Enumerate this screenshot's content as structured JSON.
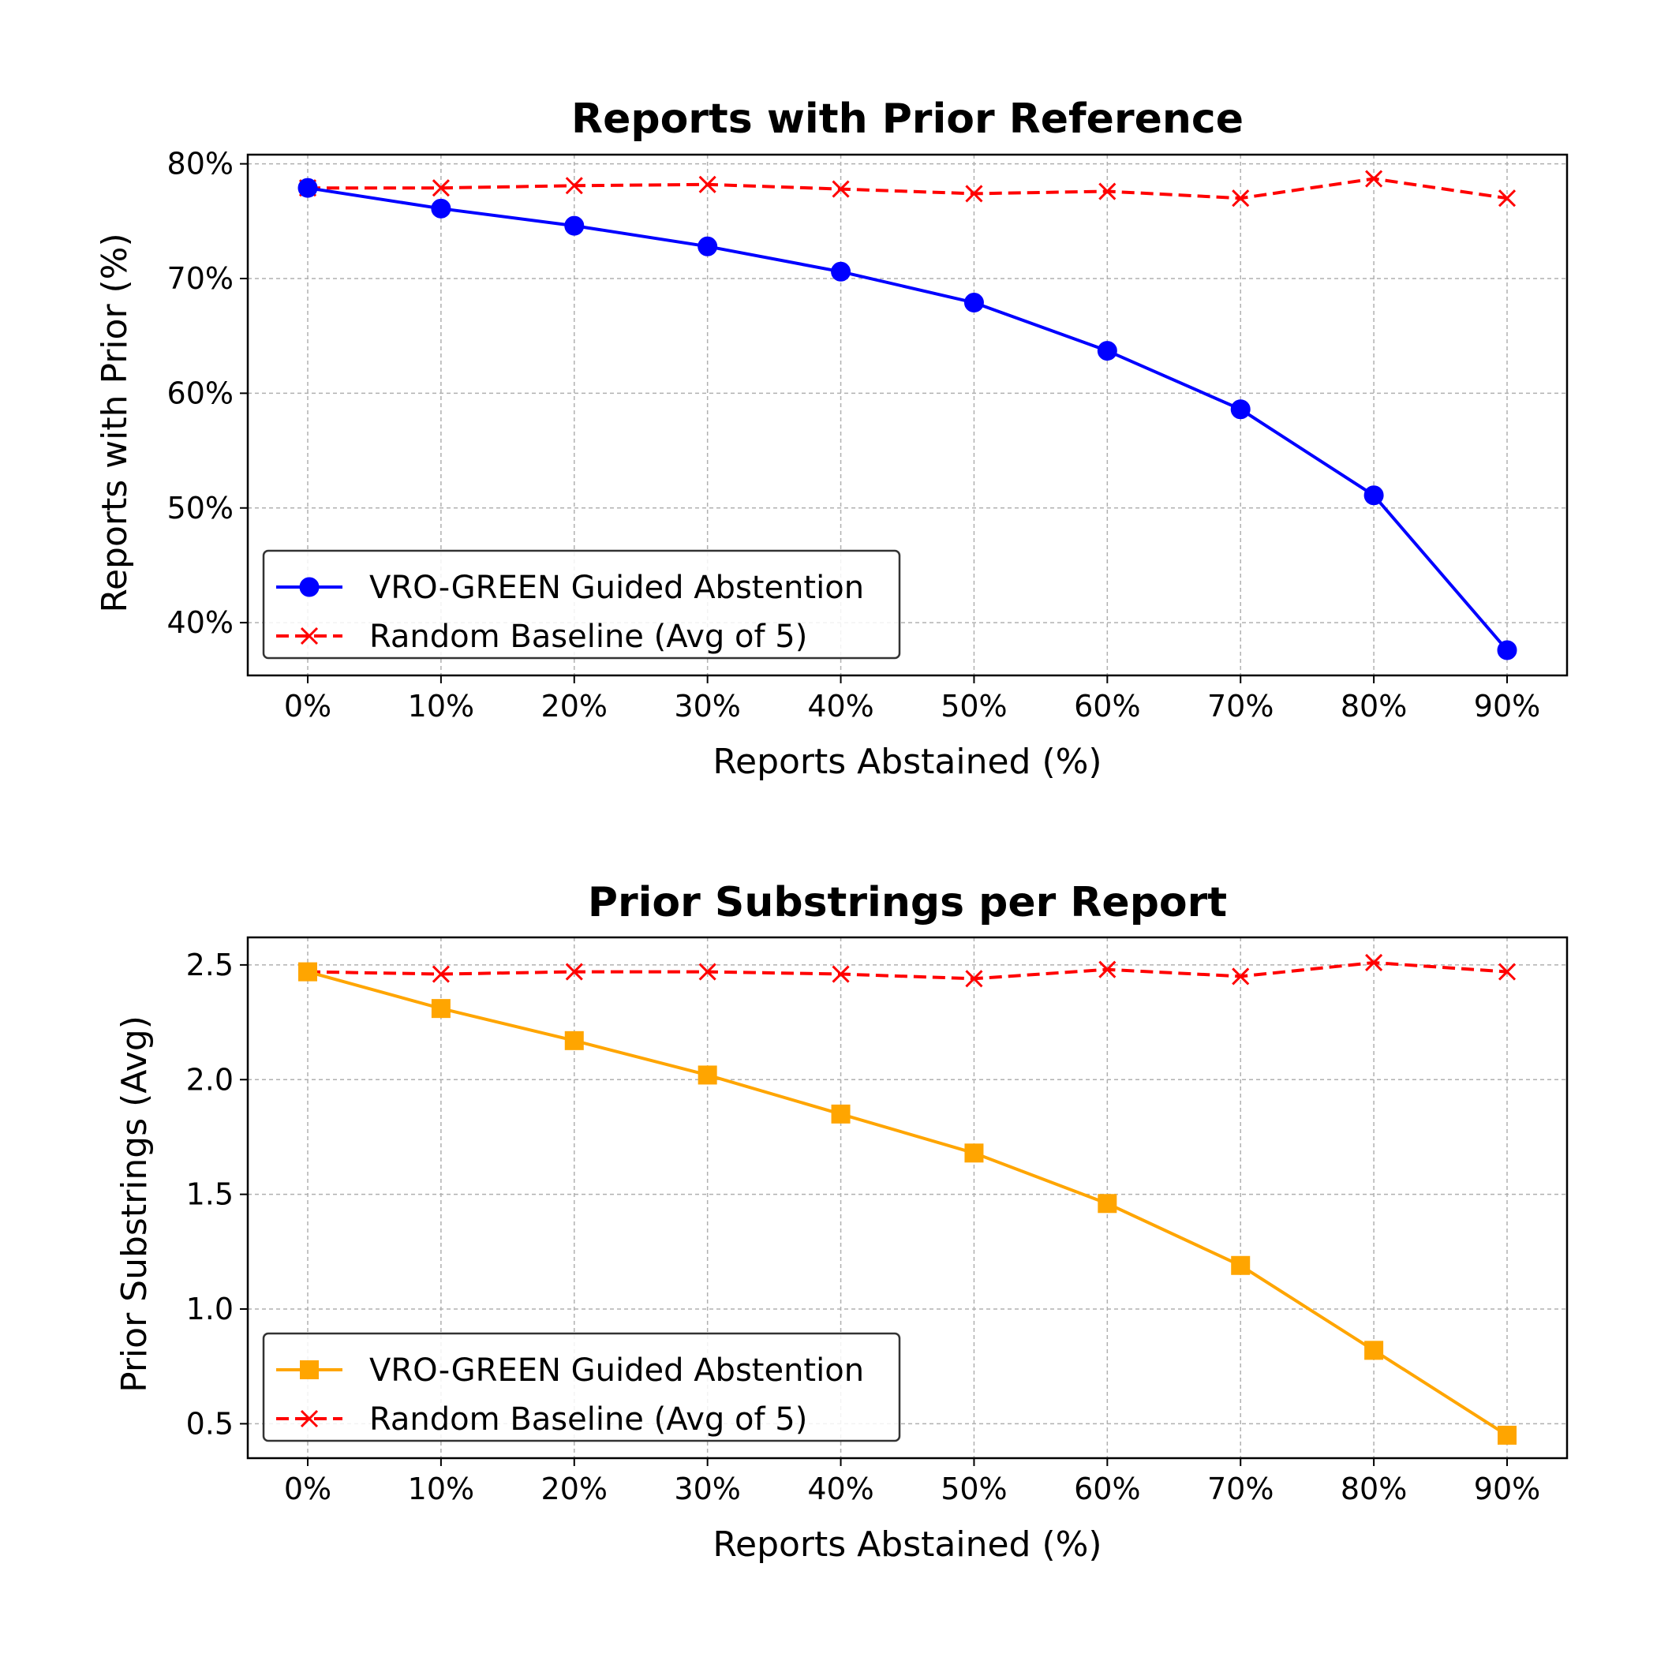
{
  "chart_data": [
    {
      "type": "line",
      "title": "Reports with Prior Reference",
      "xlabel": "Reports Abstained (%)",
      "ylabel": "Reports with Prior (%)",
      "categories": [
        "0%",
        "10%",
        "20%",
        "30%",
        "40%",
        "50%",
        "60%",
        "70%",
        "80%",
        "90%"
      ],
      "x": [
        0,
        10,
        20,
        30,
        40,
        50,
        60,
        70,
        80,
        90
      ],
      "ylim": [
        35.4,
        80.8
      ],
      "yticks": [
        40,
        50,
        60,
        70,
        80
      ],
      "ytick_labels": [
        "40%",
        "50%",
        "60%",
        "70%",
        "80%"
      ],
      "grid": true,
      "legend_position": "lower-left",
      "series": [
        {
          "name": "VRO-GREEN Guided Abstention",
          "color": "#0000ff",
          "marker": "circle",
          "linestyle": "solid",
          "values": [
            77.9,
            76.1,
            74.6,
            72.8,
            70.6,
            67.9,
            63.7,
            58.6,
            51.1,
            37.6
          ]
        },
        {
          "name": "Random Baseline (Avg of 5)",
          "color": "#ff0000",
          "marker": "x",
          "linestyle": "dashed",
          "values": [
            77.9,
            77.9,
            78.1,
            78.2,
            77.8,
            77.4,
            77.6,
            77.0,
            78.7,
            77.0
          ]
        }
      ]
    },
    {
      "type": "line",
      "title": "Prior Substrings per Report",
      "xlabel": "Reports Abstained (%)",
      "ylabel": "Prior Substrings (Avg)",
      "categories": [
        "0%",
        "10%",
        "20%",
        "30%",
        "40%",
        "50%",
        "60%",
        "70%",
        "80%",
        "90%"
      ],
      "x": [
        0,
        10,
        20,
        30,
        40,
        50,
        60,
        70,
        80,
        90
      ],
      "ylim": [
        0.35,
        2.62
      ],
      "yticks": [
        0.5,
        1.0,
        1.5,
        2.0,
        2.5
      ],
      "ytick_labels": [
        "0.5",
        "1.0",
        "1.5",
        "2.0",
        "2.5"
      ],
      "grid": true,
      "legend_position": "lower-left",
      "series": [
        {
          "name": "VRO-GREEN Guided Abstention",
          "color": "#ffa500",
          "marker": "square",
          "linestyle": "solid",
          "values": [
            2.47,
            2.31,
            2.17,
            2.02,
            1.85,
            1.68,
            1.46,
            1.19,
            0.82,
            0.45
          ]
        },
        {
          "name": "Random Baseline (Avg of 5)",
          "color": "#ff0000",
          "marker": "x",
          "linestyle": "dashed",
          "values": [
            2.47,
            2.46,
            2.47,
            2.47,
            2.46,
            2.44,
            2.48,
            2.45,
            2.51,
            2.47
          ]
        }
      ]
    }
  ]
}
